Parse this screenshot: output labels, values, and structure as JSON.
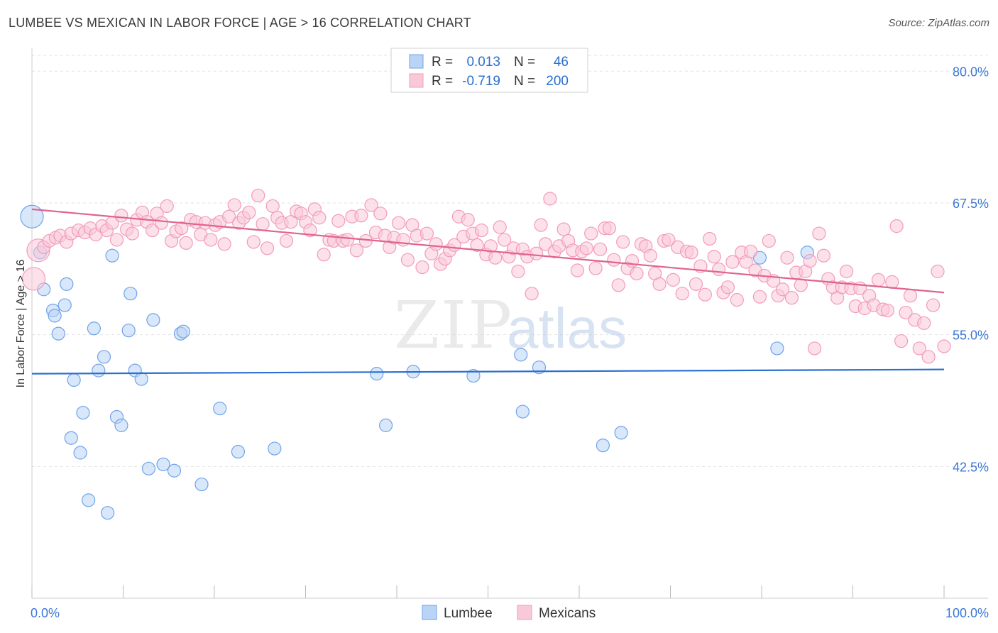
{
  "chart_data": {
    "type": "scatter",
    "title": "LUMBEE VS MEXICAN IN LABOR FORCE | AGE > 16 CORRELATION CHART",
    "source": "Source: ZipAtlas.com",
    "ylabel": "In Labor Force | Age > 16",
    "xlabel": "",
    "x_tick_labels": [
      "0.0%",
      "100.0%"
    ],
    "y_tick_labels": [
      "80.0%",
      "67.5%",
      "55.0%",
      "42.5%"
    ],
    "y_ticks": [
      80.0,
      67.5,
      55.0,
      42.5
    ],
    "xlim": [
      0,
      100
    ],
    "ylim": [
      30.0,
      81.5
    ],
    "grid": true,
    "legend_position": "top-center",
    "watermark": "ZIPatlas",
    "stats": [
      {
        "r_label": "R =",
        "r": "0.013",
        "n_label": "N =",
        "n": "46"
      },
      {
        "r_label": "R =",
        "r": "-0.719",
        "n_label": "N =",
        "n": "200"
      }
    ],
    "series": [
      {
        "name": "Lumbee",
        "color": "#6fa3e8",
        "fill": "#b9d4f5",
        "trend_color": "#2a6fd1",
        "trend": [
          [
            0,
            51.3
          ],
          [
            100,
            51.7
          ]
        ],
        "points": [
          [
            0,
            66.2
          ],
          [
            0.9,
            62.8
          ],
          [
            1.3,
            59.3
          ],
          [
            2.3,
            57.3
          ],
          [
            2.5,
            56.8
          ],
          [
            2.9,
            55.1
          ],
          [
            3.6,
            57.8
          ],
          [
            3.8,
            59.8
          ],
          [
            4.6,
            50.7
          ],
          [
            5.6,
            47.6
          ],
          [
            4.3,
            45.2
          ],
          [
            5.3,
            43.8
          ],
          [
            6.2,
            39.3
          ],
          [
            6.8,
            55.6
          ],
          [
            7.3,
            51.6
          ],
          [
            7.9,
            52.9
          ],
          [
            8.3,
            38.1
          ],
          [
            8.8,
            62.5
          ],
          [
            9.3,
            47.2
          ],
          [
            9.8,
            46.4
          ],
          [
            10.6,
            55.4
          ],
          [
            10.8,
            58.9
          ],
          [
            11.3,
            51.6
          ],
          [
            12.0,
            50.8
          ],
          [
            12.8,
            42.3
          ],
          [
            13.3,
            56.4
          ],
          [
            14.4,
            42.7
          ],
          [
            15.6,
            42.1
          ],
          [
            16.3,
            55.1
          ],
          [
            16.6,
            55.3
          ],
          [
            18.6,
            40.8
          ],
          [
            20.6,
            48.0
          ],
          [
            22.6,
            43.9
          ],
          [
            26.6,
            44.2
          ],
          [
            37.8,
            51.3
          ],
          [
            38.8,
            46.4
          ],
          [
            41.8,
            51.5
          ],
          [
            48.4,
            51.1
          ],
          [
            53.6,
            53.1
          ],
          [
            53.8,
            47.7
          ],
          [
            55.6,
            51.9
          ],
          [
            62.6,
            44.5
          ],
          [
            64.6,
            45.7
          ],
          [
            79.8,
            62.3
          ],
          [
            81.7,
            53.7
          ],
          [
            85.0,
            62.8
          ]
        ]
      },
      {
        "name": "Mexicans",
        "color": "#f29bb8",
        "fill": "#f9c9d8",
        "trend_color": "#e0638e",
        "trend": [
          [
            0,
            66.9
          ],
          [
            100,
            59.0
          ]
        ],
        "points": [
          [
            0.2,
            60.3
          ],
          [
            0.7,
            63.0
          ],
          [
            1.3,
            63.3
          ],
          [
            1.9,
            63.9
          ],
          [
            2.6,
            64.2
          ],
          [
            3.1,
            64.4
          ],
          [
            3.8,
            63.8
          ],
          [
            4.3,
            64.6
          ],
          [
            5.1,
            64.9
          ],
          [
            5.8,
            64.7
          ],
          [
            6.4,
            65.1
          ],
          [
            7.0,
            64.5
          ],
          [
            7.7,
            65.3
          ],
          [
            8.2,
            64.9
          ],
          [
            8.8,
            65.6
          ],
          [
            9.3,
            64.0
          ],
          [
            9.8,
            66.3
          ],
          [
            10.4,
            65.0
          ],
          [
            11.0,
            64.6
          ],
          [
            11.5,
            65.9
          ],
          [
            12.1,
            66.6
          ],
          [
            12.6,
            65.7
          ],
          [
            13.2,
            64.9
          ],
          [
            13.7,
            66.5
          ],
          [
            14.2,
            65.6
          ],
          [
            14.8,
            67.2
          ],
          [
            15.3,
            63.9
          ],
          [
            15.8,
            64.8
          ],
          [
            16.4,
            65.1
          ],
          [
            16.9,
            63.7
          ],
          [
            17.4,
            65.9
          ],
          [
            18.0,
            65.7
          ],
          [
            18.5,
            64.5
          ],
          [
            19.0,
            65.6
          ],
          [
            19.6,
            64.0
          ],
          [
            20.1,
            65.4
          ],
          [
            20.6,
            65.7
          ],
          [
            21.1,
            63.6
          ],
          [
            21.6,
            66.2
          ],
          [
            22.2,
            67.3
          ],
          [
            22.7,
            65.6
          ],
          [
            23.2,
            66.1
          ],
          [
            23.8,
            66.6
          ],
          [
            24.3,
            63.8
          ],
          [
            24.8,
            68.2
          ],
          [
            25.3,
            65.5
          ],
          [
            25.8,
            63.2
          ],
          [
            26.4,
            67.2
          ],
          [
            26.9,
            66.1
          ],
          [
            27.4,
            65.6
          ],
          [
            27.9,
            63.9
          ],
          [
            28.4,
            65.7
          ],
          [
            29.0,
            66.7
          ],
          [
            29.5,
            66.5
          ],
          [
            30.0,
            65.7
          ],
          [
            30.5,
            64.9
          ],
          [
            31.0,
            66.9
          ],
          [
            31.5,
            66.1
          ],
          [
            32.0,
            62.6
          ],
          [
            32.6,
            64.0
          ],
          [
            33.1,
            63.9
          ],
          [
            33.6,
            65.8
          ],
          [
            34.1,
            63.9
          ],
          [
            34.6,
            64.0
          ],
          [
            35.1,
            66.2
          ],
          [
            35.6,
            63.0
          ],
          [
            36.1,
            66.3
          ],
          [
            36.6,
            63.9
          ],
          [
            37.2,
            67.3
          ],
          [
            37.7,
            64.7
          ],
          [
            38.2,
            66.5
          ],
          [
            38.7,
            64.4
          ],
          [
            39.2,
            63.3
          ],
          [
            39.7,
            64.2
          ],
          [
            40.2,
            65.6
          ],
          [
            40.7,
            64.0
          ],
          [
            41.2,
            62.1
          ],
          [
            41.7,
            65.4
          ],
          [
            42.2,
            64.4
          ],
          [
            42.8,
            61.4
          ],
          [
            43.3,
            64.6
          ],
          [
            43.8,
            62.7
          ],
          [
            44.3,
            63.6
          ],
          [
            44.8,
            61.7
          ],
          [
            45.3,
            62.2
          ],
          [
            45.8,
            63.0
          ],
          [
            46.3,
            63.5
          ],
          [
            46.8,
            66.2
          ],
          [
            47.3,
            64.3
          ],
          [
            47.8,
            65.9
          ],
          [
            48.3,
            64.6
          ],
          [
            48.8,
            63.5
          ],
          [
            49.3,
            64.9
          ],
          [
            49.8,
            62.6
          ],
          [
            50.3,
            63.4
          ],
          [
            50.8,
            62.3
          ],
          [
            51.3,
            65.2
          ],
          [
            51.8,
            64.0
          ],
          [
            52.3,
            62.4
          ],
          [
            52.8,
            63.2
          ],
          [
            53.3,
            61.0
          ],
          [
            53.8,
            63.1
          ],
          [
            54.3,
            62.4
          ],
          [
            54.8,
            58.9
          ],
          [
            55.3,
            62.7
          ],
          [
            55.8,
            65.4
          ],
          [
            56.3,
            63.6
          ],
          [
            56.8,
            67.9
          ],
          [
            57.3,
            62.9
          ],
          [
            57.8,
            63.4
          ],
          [
            58.3,
            65.0
          ],
          [
            58.8,
            63.9
          ],
          [
            59.3,
            63.0
          ],
          [
            59.8,
            61.1
          ],
          [
            60.3,
            62.9
          ],
          [
            60.8,
            63.2
          ],
          [
            61.3,
            64.6
          ],
          [
            61.8,
            61.3
          ],
          [
            62.3,
            63.1
          ],
          [
            62.8,
            65.1
          ],
          [
            63.3,
            65.1
          ],
          [
            63.8,
            62.1
          ],
          [
            64.3,
            59.7
          ],
          [
            64.8,
            63.8
          ],
          [
            65.3,
            61.3
          ],
          [
            65.8,
            62.0
          ],
          [
            66.3,
            60.8
          ],
          [
            66.8,
            63.6
          ],
          [
            67.3,
            63.4
          ],
          [
            67.8,
            62.5
          ],
          [
            68.3,
            60.8
          ],
          [
            68.8,
            59.8
          ],
          [
            69.3,
            63.9
          ],
          [
            69.8,
            64.0
          ],
          [
            70.3,
            60.2
          ],
          [
            70.8,
            63.3
          ],
          [
            71.3,
            58.9
          ],
          [
            71.8,
            62.9
          ],
          [
            72.3,
            62.8
          ],
          [
            72.8,
            59.8
          ],
          [
            73.3,
            61.5
          ],
          [
            73.8,
            58.8
          ],
          [
            74.3,
            64.1
          ],
          [
            74.8,
            62.4
          ],
          [
            75.3,
            61.2
          ],
          [
            75.8,
            59.0
          ],
          [
            76.3,
            59.5
          ],
          [
            76.8,
            61.9
          ],
          [
            77.3,
            58.3
          ],
          [
            77.8,
            62.8
          ],
          [
            78.3,
            61.9
          ],
          [
            78.8,
            62.9
          ],
          [
            79.3,
            61.1
          ],
          [
            79.8,
            58.6
          ],
          [
            80.3,
            60.6
          ],
          [
            80.8,
            63.9
          ],
          [
            81.3,
            60.1
          ],
          [
            81.8,
            58.7
          ],
          [
            82.3,
            59.3
          ],
          [
            82.8,
            62.3
          ],
          [
            83.3,
            58.5
          ],
          [
            83.8,
            60.9
          ],
          [
            84.3,
            59.7
          ],
          [
            84.8,
            61.0
          ],
          [
            85.3,
            62.0
          ],
          [
            85.8,
            53.7
          ],
          [
            86.3,
            64.6
          ],
          [
            86.8,
            62.5
          ],
          [
            87.3,
            60.3
          ],
          [
            87.8,
            59.5
          ],
          [
            88.3,
            58.5
          ],
          [
            88.8,
            59.5
          ],
          [
            89.3,
            61.0
          ],
          [
            89.8,
            59.4
          ],
          [
            90.3,
            57.7
          ],
          [
            90.8,
            59.4
          ],
          [
            91.3,
            57.5
          ],
          [
            91.8,
            58.7
          ],
          [
            92.3,
            57.8
          ],
          [
            92.8,
            60.2
          ],
          [
            93.3,
            57.4
          ],
          [
            93.8,
            57.3
          ],
          [
            94.3,
            60.0
          ],
          [
            94.8,
            65.3
          ],
          [
            95.3,
            54.4
          ],
          [
            95.8,
            57.1
          ],
          [
            96.3,
            58.7
          ],
          [
            96.8,
            56.4
          ],
          [
            97.3,
            53.7
          ],
          [
            97.8,
            56.1
          ],
          [
            98.3,
            52.9
          ],
          [
            98.8,
            57.8
          ],
          [
            99.3,
            61.0
          ],
          [
            100.0,
            53.9
          ]
        ]
      }
    ]
  }
}
